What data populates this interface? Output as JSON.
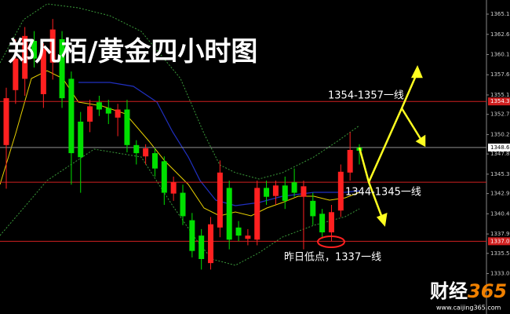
{
  "chart_data": {
    "type": "candlestick",
    "title": "郑凡栢/黄金四小时图",
    "up_color": "#ff2020",
    "down_color": "#00e000",
    "ylim": [
      1328.0,
      1366.85
    ],
    "yticks": [
      {
        "value": 1365.1,
        "label": "1365.10"
      },
      {
        "value": 1362.6,
        "label": "1362.60"
      },
      {
        "value": 1360.1,
        "label": "1360.10"
      },
      {
        "value": 1357.6,
        "label": "1357.60"
      },
      {
        "value": 1355.1,
        "label": "1355.10"
      },
      {
        "value": 1352.7,
        "label": "1352.70"
      },
      {
        "value": 1350.2,
        "label": "1350.20"
      },
      {
        "value": 1347.8,
        "label": "1347.80"
      },
      {
        "value": 1345.3,
        "label": "1345.30"
      },
      {
        "value": 1342.9,
        "label": "1342.90"
      },
      {
        "value": 1340.4,
        "label": "1340.40"
      },
      {
        "value": 1337.9,
        "label": "1337.90"
      },
      {
        "value": 1335.5,
        "label": "1335.50"
      },
      {
        "value": 1333,
        "label": "1333.00"
      }
    ],
    "levels": [
      {
        "value": 1354.3,
        "label": "1354.3",
        "color": "#d02020"
      },
      {
        "value": 1348.6,
        "label": "1348.6",
        "color": "#909090"
      },
      {
        "value": 1344.3,
        "color": "#d02020"
      },
      {
        "value": 1337.0,
        "label": "1337.0",
        "color": "#d02020"
      }
    ],
    "candles": [
      {
        "open": 1348.9,
        "high": 1356.0,
        "low": 1343.5,
        "close": 1354.7
      },
      {
        "open": 1355.7,
        "high": 1362.0,
        "low": 1354.0,
        "close": 1359.6
      },
      {
        "open": 1357.1,
        "high": 1363.5,
        "low": 1355.0,
        "close": 1362.4
      },
      {
        "open": 1361.8,
        "high": 1363.0,
        "low": 1358.5,
        "close": 1359.6
      },
      {
        "open": 1355.2,
        "high": 1361.5,
        "low": 1353.5,
        "close": 1360.8
      },
      {
        "open": 1359.1,
        "high": 1364.5,
        "low": 1357.0,
        "close": 1363.2
      },
      {
        "open": 1362.0,
        "high": 1363.0,
        "low": 1353.5,
        "close": 1354.7
      },
      {
        "open": 1357.1,
        "high": 1358.0,
        "low": 1344.0,
        "close": 1347.9
      },
      {
        "open": 1351.8,
        "high": 1353.0,
        "low": 1343.0,
        "close": 1347.4
      },
      {
        "open": 1351.8,
        "high": 1354.5,
        "low": 1350.5,
        "close": 1353.7
      },
      {
        "open": 1354.2,
        "high": 1355.0,
        "low": 1352.5,
        "close": 1353.3
      },
      {
        "open": 1353.5,
        "high": 1354.5,
        "low": 1351.5,
        "close": 1352.8
      },
      {
        "open": 1352.3,
        "high": 1354.0,
        "low": 1350.0,
        "close": 1353.3
      },
      {
        "open": 1353.3,
        "high": 1354.5,
        "low": 1348.0,
        "close": 1348.9
      },
      {
        "open": 1348.9,
        "high": 1349.5,
        "low": 1346.5,
        "close": 1347.9
      },
      {
        "open": 1347.5,
        "high": 1349.0,
        "low": 1346.5,
        "close": 1348.5
      },
      {
        "open": 1347.9,
        "high": 1348.5,
        "low": 1345.0,
        "close": 1346.0
      },
      {
        "open": 1346.9,
        "high": 1347.5,
        "low": 1341.5,
        "close": 1343.0
      },
      {
        "open": 1342.9,
        "high": 1345.0,
        "low": 1342.0,
        "close": 1344.3
      },
      {
        "open": 1343.0,
        "high": 1344.0,
        "low": 1339.0,
        "close": 1340.1
      },
      {
        "open": 1339.6,
        "high": 1340.5,
        "low": 1335.0,
        "close": 1335.8
      },
      {
        "open": 1337.7,
        "high": 1338.5,
        "low": 1333.5,
        "close": 1334.8
      },
      {
        "open": 1334.3,
        "high": 1340.0,
        "low": 1333.5,
        "close": 1339.1
      },
      {
        "open": 1338.7,
        "high": 1347.0,
        "low": 1337.5,
        "close": 1345.5
      },
      {
        "open": 1343.6,
        "high": 1344.5,
        "low": 1336.0,
        "close": 1337.2
      },
      {
        "open": 1338.7,
        "high": 1339.5,
        "low": 1337.0,
        "close": 1337.7
      },
      {
        "open": 1337.3,
        "high": 1338.5,
        "low": 1336.5,
        "close": 1337.7
      },
      {
        "open": 1337.2,
        "high": 1344.5,
        "low": 1336.5,
        "close": 1343.6
      },
      {
        "open": 1343.6,
        "high": 1344.5,
        "low": 1341.5,
        "close": 1342.5
      },
      {
        "open": 1342.6,
        "high": 1344.5,
        "low": 1341.5,
        "close": 1343.9
      },
      {
        "open": 1343.9,
        "high": 1345.0,
        "low": 1341.0,
        "close": 1342.0
      },
      {
        "open": 1344.3,
        "high": 1346.0,
        "low": 1342.5,
        "close": 1343.0
      },
      {
        "open": 1342.5,
        "high": 1344.5,
        "low": 1336.0,
        "close": 1343.8
      },
      {
        "open": 1342.0,
        "high": 1343.0,
        "low": 1339.0,
        "close": 1340.1
      },
      {
        "open": 1340.4,
        "high": 1341.0,
        "low": 1337.5,
        "close": 1338.1
      },
      {
        "open": 1338.1,
        "high": 1341.5,
        "low": 1337.0,
        "close": 1340.6
      },
      {
        "open": 1340.8,
        "high": 1346.5,
        "low": 1340.0,
        "close": 1345.6
      },
      {
        "open": 1345.5,
        "high": 1350.5,
        "low": 1344.5,
        "close": 1348.3
      },
      {
        "open": 1348.6,
        "high": 1349.0,
        "low": 1346.5,
        "close": 1348.2
      }
    ],
    "annotations": [
      "1354-1357一线",
      "1344-1345一线",
      "昨日低点，1337一线"
    ]
  },
  "logo": {
    "name": "财经",
    "number": "365",
    "url": "www.caijing365.com"
  }
}
